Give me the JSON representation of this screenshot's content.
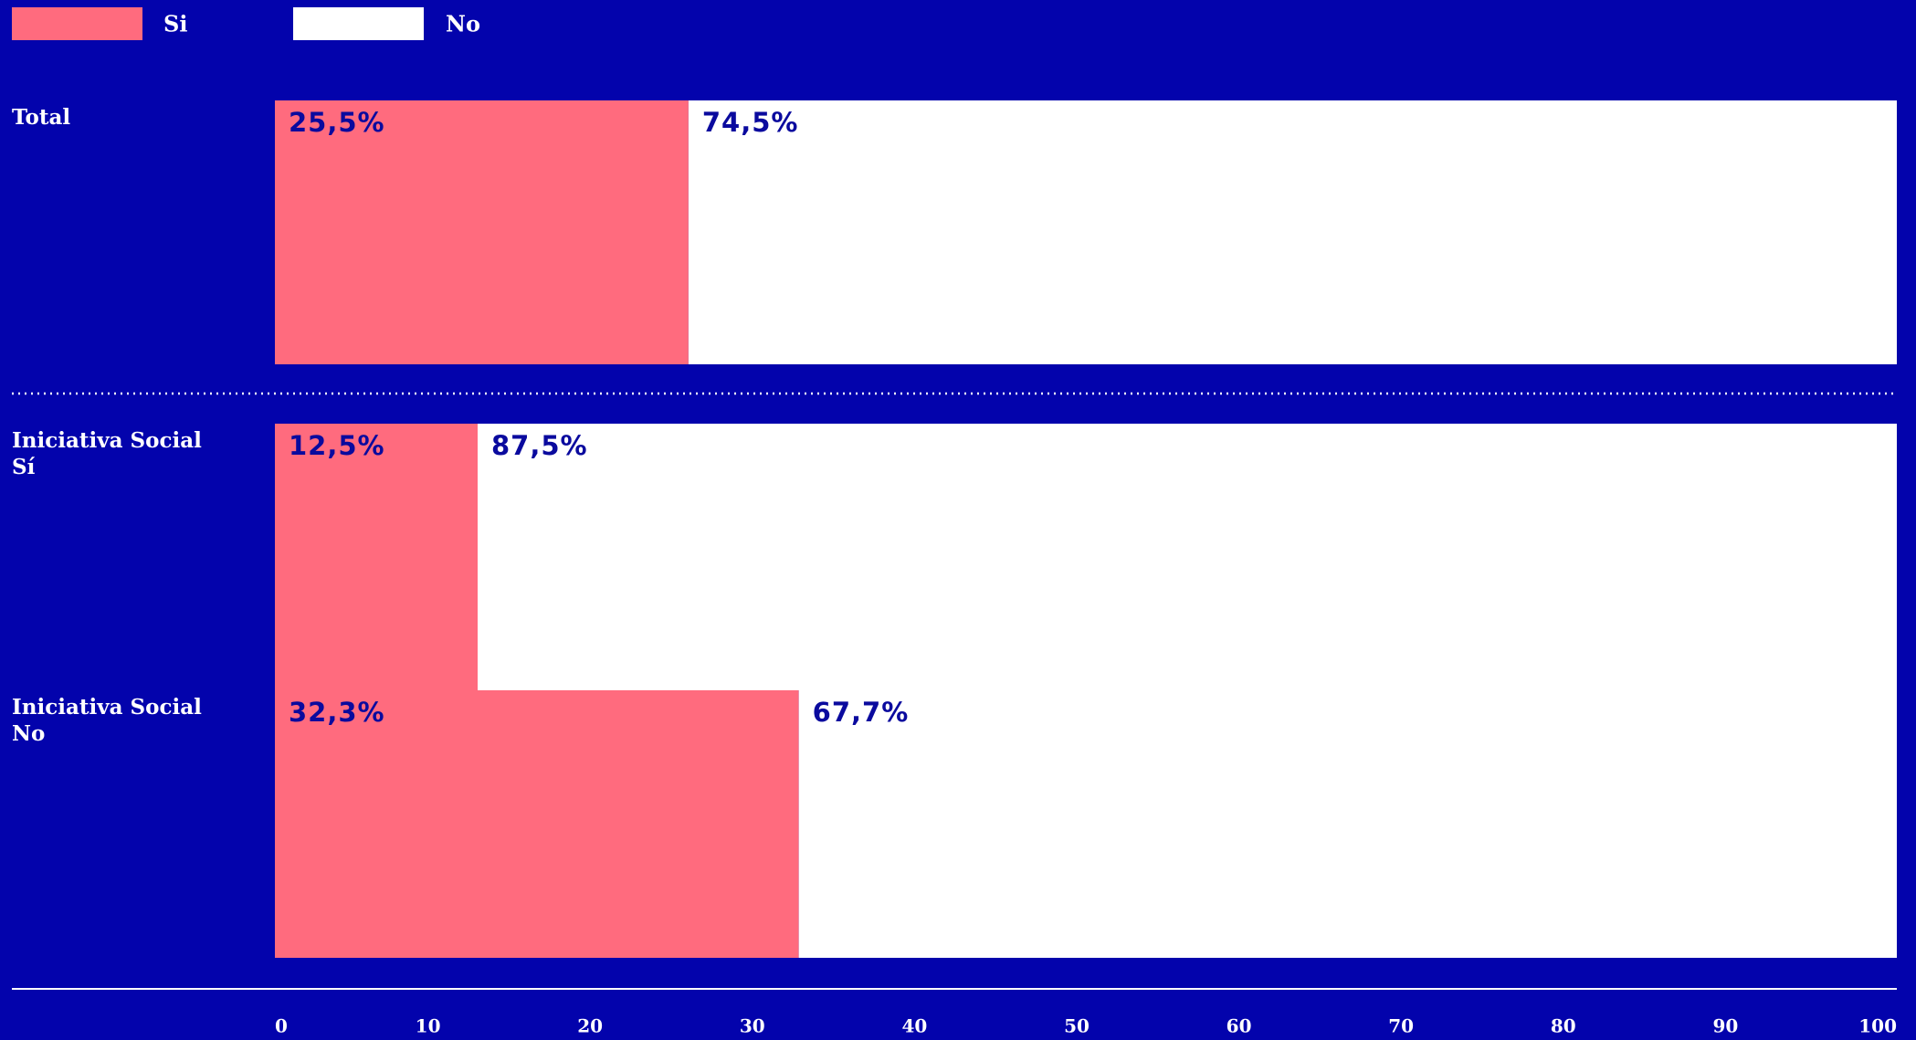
{
  "chart_data": {
    "type": "stacked_bar_horizontal",
    "categories": [
      "Total",
      "Iniciativa Social\nSí",
      "Iniciativa Social\nNo"
    ],
    "series": [
      {
        "name": "Si",
        "color": "#ff6b7e",
        "values": [
          25.5,
          12.5,
          32.3
        ],
        "value_labels": [
          "25,5%",
          "12,5%",
          "32,3%"
        ]
      },
      {
        "name": "No",
        "color": "#ffffff",
        "values": [
          74.5,
          87.5,
          67.7
        ],
        "value_labels": [
          "74,5%",
          "87,5%",
          "67,7%"
        ]
      }
    ],
    "xlim": [
      0,
      100
    ],
    "xticks": [
      0,
      10,
      20,
      30,
      40,
      50,
      60,
      70,
      80,
      90,
      100
    ],
    "legend": "top-left"
  }
}
